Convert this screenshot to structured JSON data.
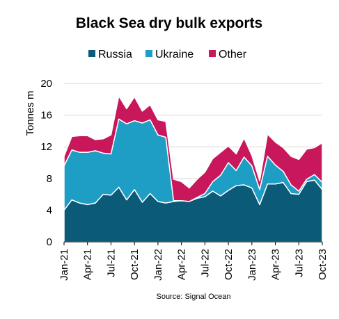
{
  "chart_data": {
    "type": "area",
    "stacked": true,
    "title": "Black Sea dry bulk exports",
    "ylabel": "Tonnes m",
    "xlabel": "",
    "ylim": [
      0,
      20
    ],
    "yticks": [
      "0",
      "4",
      "8",
      "12",
      "16",
      "20"
    ],
    "grid": true,
    "legend_position": "top",
    "source": "Source: Signal Ocean",
    "x": [
      "Jan-21",
      "Feb-21",
      "Mar-21",
      "Apr-21",
      "May-21",
      "Jun-21",
      "Jul-21",
      "Aug-21",
      "Sep-21",
      "Oct-21",
      "Nov-21",
      "Dec-21",
      "Jan-22",
      "Feb-22",
      "Mar-22",
      "Apr-22",
      "May-22",
      "Jun-22",
      "Jul-22",
      "Aug-22",
      "Sep-22",
      "Oct-22",
      "Nov-22",
      "Dec-22",
      "Jan-23",
      "Feb-23",
      "Mar-23",
      "Apr-23",
      "May-23",
      "Jun-23",
      "Jul-23",
      "Aug-23",
      "Sep-23",
      "Oct-23"
    ],
    "xtick_labels": [
      "Jan-21",
      "Apr-21",
      "Jul-21",
      "Oct-21",
      "Jan-22",
      "Apr-22",
      "Jul-22",
      "Oct-22",
      "Jan-23",
      "Apr-23",
      "Jul-23",
      "Oct-23"
    ],
    "series": [
      {
        "name": "Russia",
        "color": "#0a5a78",
        "values": [
          4.0,
          5.3,
          4.9,
          4.7,
          4.9,
          6.0,
          5.9,
          6.9,
          5.3,
          6.6,
          5.0,
          6.1,
          5.1,
          4.9,
          5.1,
          5.2,
          5.1,
          5.5,
          5.7,
          6.4,
          5.8,
          6.5,
          7.1,
          7.2,
          6.8,
          4.7,
          7.3,
          7.3,
          7.5,
          6.1,
          6.0,
          7.6,
          7.8,
          6.6
        ]
      },
      {
        "name": "Ukraine",
        "color": "#1e9dc5",
        "values": [
          5.6,
          6.3,
          6.4,
          6.6,
          6.6,
          5.2,
          5.2,
          8.6,
          9.6,
          8.7,
          10.0,
          9.3,
          8.4,
          8.3,
          0.1,
          0.0,
          0.0,
          0.1,
          0.4,
          1.2,
          2.6,
          3.5,
          1.9,
          3.5,
          2.8,
          1.9,
          3.5,
          2.4,
          1.4,
          1.1,
          0.4,
          0.3,
          0.7,
          0.9
        ]
      },
      {
        "name": "Other",
        "color": "#c8175a",
        "values": [
          1.2,
          1.7,
          2.1,
          2.1,
          1.4,
          1.8,
          2.4,
          2.9,
          1.9,
          3.0,
          1.5,
          1.9,
          1.9,
          2.0,
          2.7,
          2.4,
          1.7,
          2.3,
          2.7,
          2.9,
          2.9,
          2.1,
          2.1,
          2.4,
          1.3,
          1.1,
          2.8,
          2.9,
          3.0,
          3.6,
          4.0,
          3.8,
          3.4,
          5.0
        ]
      }
    ]
  }
}
